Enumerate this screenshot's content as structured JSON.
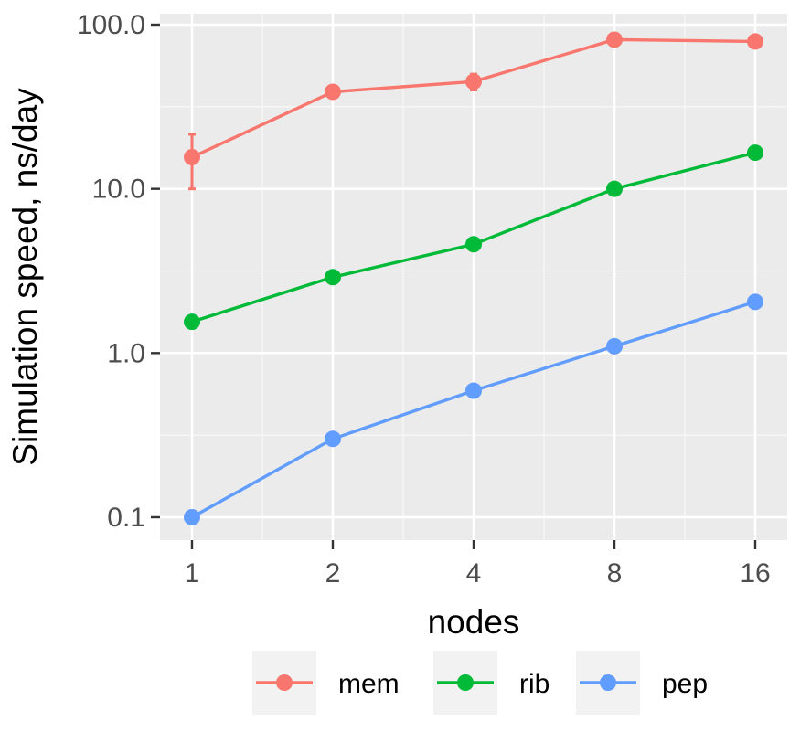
{
  "chart_data": {
    "type": "line",
    "xlabel": "nodes",
    "ylabel": "Simulation speed, ns/day",
    "x_scale": "log2",
    "y_scale": "log10",
    "x": [
      1,
      2,
      4,
      8,
      16
    ],
    "x_tick_labels": [
      "1",
      "2",
      "4",
      "8",
      "16"
    ],
    "y_ticks": [
      0.1,
      1,
      10,
      100
    ],
    "y_tick_labels": [
      "0.1",
      "1.0",
      "10.0",
      "100.0"
    ],
    "ylim": [
      0.074,
      148
    ],
    "grid": true,
    "legend_position": "bottom",
    "series": [
      {
        "name": "mem",
        "color": "#F8766D",
        "values": [
          15.6,
          39,
          45,
          81,
          79
        ],
        "error": [
          [
            10,
            21.5
          ],
          null,
          [
            40,
            50
          ],
          null,
          null
        ]
      },
      {
        "name": "rib",
        "color": "#00BA38",
        "values": [
          1.55,
          2.9,
          4.6,
          10,
          16.6
        ],
        "error": [
          null,
          null,
          null,
          null,
          null
        ]
      },
      {
        "name": "pep",
        "color": "#619CFF",
        "values": [
          0.1,
          0.3,
          0.59,
          1.1,
          2.05
        ],
        "error": [
          null,
          null,
          null,
          null,
          null
        ]
      }
    ]
  }
}
